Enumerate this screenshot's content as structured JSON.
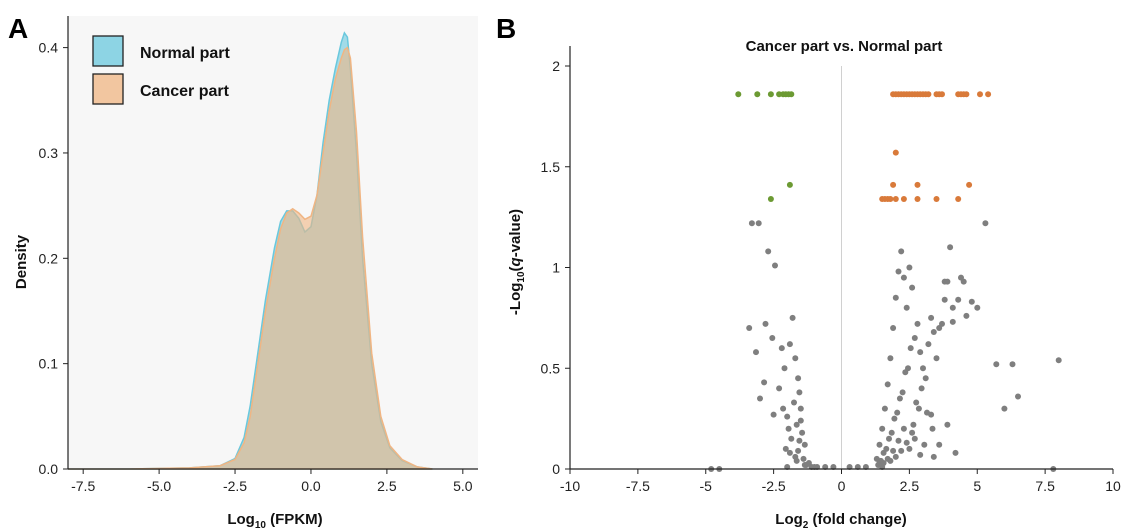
{
  "panels": {
    "a": "A",
    "b": "B"
  },
  "chart_data": [
    {
      "type": "area",
      "xlabel_main": "Log",
      "xlabel_sub": "10",
      "xlabel_rest": " (FPKM)",
      "ylabel": "Density",
      "xlim": [
        -8,
        5.5
      ],
      "ylim": [
        0,
        0.43
      ],
      "x_ticks": [
        "-7.5",
        "-5.0",
        "-2.5",
        "0.0",
        "2.5",
        "5.0"
      ],
      "x_tick_values": [
        -7.5,
        -5.0,
        -2.5,
        0.0,
        2.5,
        5.0
      ],
      "y_ticks": [
        "0.0",
        "0.1",
        "0.2",
        "0.3",
        "0.4"
      ],
      "y_tick_values": [
        0.0,
        0.1,
        0.2,
        0.3,
        0.4
      ],
      "legend": {
        "placement": "top-left"
      },
      "series": [
        {
          "name": "Normal part",
          "color": "#69c8dd",
          "x": [
            -8.0,
            -6.0,
            -4.0,
            -3.0,
            -2.5,
            -2.2,
            -2.0,
            -1.8,
            -1.5,
            -1.2,
            -1.0,
            -0.8,
            -0.6,
            -0.4,
            -0.2,
            0.0,
            0.2,
            0.4,
            0.6,
            0.8,
            1.0,
            1.1,
            1.2,
            1.3,
            1.5,
            1.7,
            2.0,
            2.3,
            2.6,
            3.0,
            3.5,
            4.0
          ],
          "y": [
            0.0,
            0.0,
            0.001,
            0.003,
            0.01,
            0.03,
            0.06,
            0.1,
            0.16,
            0.21,
            0.235,
            0.245,
            0.245,
            0.238,
            0.225,
            0.23,
            0.26,
            0.31,
            0.35,
            0.38,
            0.405,
            0.414,
            0.41,
            0.38,
            0.3,
            0.2,
            0.1,
            0.045,
            0.02,
            0.008,
            0.002,
            0.0
          ]
        },
        {
          "name": "Cancer part",
          "color": "#f0b583",
          "x": [
            -8.0,
            -6.0,
            -4.0,
            -3.0,
            -2.5,
            -2.2,
            -2.0,
            -1.8,
            -1.5,
            -1.2,
            -1.0,
            -0.8,
            -0.6,
            -0.4,
            -0.2,
            0.0,
            0.2,
            0.4,
            0.6,
            0.8,
            1.0,
            1.1,
            1.2,
            1.3,
            1.5,
            1.7,
            2.0,
            2.3,
            2.6,
            3.0,
            3.5,
            4.0
          ],
          "y": [
            0.0,
            0.0,
            0.001,
            0.003,
            0.009,
            0.025,
            0.05,
            0.09,
            0.15,
            0.2,
            0.228,
            0.243,
            0.247,
            0.243,
            0.237,
            0.24,
            0.26,
            0.3,
            0.34,
            0.37,
            0.39,
            0.398,
            0.4,
            0.39,
            0.32,
            0.22,
            0.11,
            0.05,
            0.022,
            0.009,
            0.002,
            0.0
          ]
        }
      ]
    },
    {
      "type": "scatter",
      "title": "Cancer part vs. Normal part",
      "xlabel_main": "Log",
      "xlabel_sub": "2",
      "xlabel_rest": " (fold change)",
      "ylabel_pre": "-Log",
      "ylabel_sub": "10",
      "ylabel_open": "(",
      "ylabel_ital": "q",
      "ylabel_rest": "-value)",
      "xlim": [
        -10,
        10
      ],
      "ylim": [
        0,
        2
      ],
      "x_ticks": [
        "-10",
        "-7.5",
        "-5",
        "-2.5",
        "0",
        "2.5",
        "5",
        "7.5",
        "10"
      ],
      "x_tick_values": [
        -10,
        -7.5,
        -5,
        -2.5,
        0,
        2.5,
        5,
        7.5,
        10
      ],
      "y_ticks": [
        "0",
        "0.5",
        "1",
        "1.5",
        "2"
      ],
      "y_tick_values": [
        0,
        0.5,
        1,
        1.5,
        2
      ],
      "grid": false,
      "series": [
        {
          "name": "",
          "color": "#6c9a33",
          "x": [
            -3.8,
            -3.1,
            -2.6,
            -2.3,
            -2.15,
            -2.05,
            -1.95,
            -1.85,
            -2.6,
            -1.9
          ],
          "y": [
            1.86,
            1.86,
            1.86,
            1.86,
            1.86,
            1.86,
            1.86,
            1.86,
            1.34,
            1.41
          ]
        },
        {
          "name": "",
          "color": "#d97a3a",
          "x": [
            1.9,
            2.0,
            2.1,
            2.2,
            2.3,
            2.4,
            2.5,
            2.6,
            2.7,
            2.8,
            2.9,
            3.0,
            3.1,
            3.2,
            3.5,
            3.6,
            3.7,
            4.3,
            4.4,
            4.5,
            4.6,
            5.1,
            5.4,
            1.5,
            1.6,
            1.7,
            1.8,
            2.0,
            2.3,
            2.8,
            3.5,
            1.9,
            2.8,
            4.7,
            2.0,
            4.3
          ],
          "y": [
            1.86,
            1.86,
            1.86,
            1.86,
            1.86,
            1.86,
            1.86,
            1.86,
            1.86,
            1.86,
            1.86,
            1.86,
            1.86,
            1.86,
            1.86,
            1.86,
            1.86,
            1.86,
            1.86,
            1.86,
            1.86,
            1.86,
            1.86,
            1.34,
            1.34,
            1.34,
            1.34,
            1.34,
            1.34,
            1.34,
            1.34,
            1.41,
            1.41,
            1.41,
            1.57,
            1.34
          ]
        },
        {
          "name": "",
          "color": "#7f7f7f",
          "x": [
            -3.3,
            -3.05,
            -2.7,
            -2.45,
            -2.8,
            -2.55,
            -3.4,
            -3.15,
            -2.85,
            -2.2,
            -2.1,
            -1.8,
            -1.9,
            -1.7,
            -1.6,
            -1.55,
            -1.5,
            -1.75,
            -2.0,
            -1.65,
            -1.45,
            -1.35,
            -1.85,
            -1.6,
            -2.3,
            -2.15,
            -1.95,
            -3.0,
            -2.5,
            -1.7,
            -1.4,
            -1.3,
            -1.55,
            -1.9,
            -1.2,
            -1.1,
            -1.5,
            -2.05,
            -1.65,
            -1.35,
            1.3,
            1.4,
            1.5,
            1.6,
            1.7,
            1.8,
            1.9,
            2.0,
            2.1,
            2.2,
            2.3,
            2.4,
            2.5,
            2.6,
            2.7,
            2.8,
            2.9,
            3.0,
            3.1,
            3.2,
            3.3,
            3.4,
            3.5,
            3.6,
            3.7,
            3.8,
            3.9,
            4.1,
            4.3,
            4.5,
            1.4,
            1.55,
            1.75,
            1.95,
            2.15,
            2.35,
            2.55,
            2.75,
            2.95,
            3.15,
            3.35,
            1.45,
            1.65,
            1.85,
            2.05,
            2.25,
            2.45,
            2.65,
            2.85,
            3.05,
            1.5,
            1.7,
            1.9,
            2.1,
            2.3,
            2.5,
            2.7,
            2.9,
            5.3,
            5.0,
            5.7,
            6.0,
            6.3,
            8.0,
            4.0,
            4.4,
            4.8,
            1.35,
            1.55,
            1.8,
            2.0,
            2.2,
            2.4,
            2.6,
            3.3,
            3.6,
            3.9,
            4.2,
            -0.6,
            -0.3,
            0.3,
            0.6,
            0.9,
            -0.9,
            -1.0,
            -4.5,
            -4.8,
            6.5,
            7.8,
            -2.0,
            4.6,
            3.4,
            3.8,
            4.1
          ],
          "y": [
            1.22,
            1.22,
            1.08,
            1.01,
            0.72,
            0.65,
            0.7,
            0.58,
            0.43,
            0.6,
            0.5,
            0.75,
            0.62,
            0.55,
            0.45,
            0.38,
            0.3,
            0.33,
            0.26,
            0.22,
            0.18,
            0.12,
            0.15,
            0.09,
            0.4,
            0.3,
            0.2,
            0.35,
            0.27,
            0.06,
            0.05,
            0.02,
            0.14,
            0.08,
            0.03,
            0.01,
            0.24,
            0.1,
            0.04,
            0.02,
            0.05,
            0.12,
            0.2,
            0.3,
            0.42,
            0.55,
            0.7,
            0.85,
            0.98,
            1.08,
            0.95,
            0.8,
            1.0,
            0.9,
            0.65,
            0.72,
            0.58,
            0.5,
            0.45,
            0.62,
            0.75,
            0.68,
            0.55,
            0.7,
            0.72,
            0.84,
            0.93,
            0.8,
            0.84,
            0.93,
            0.03,
            0.08,
            0.15,
            0.25,
            0.35,
            0.48,
            0.6,
            0.33,
            0.4,
            0.28,
            0.2,
            0.04,
            0.1,
            0.18,
            0.28,
            0.38,
            0.5,
            0.22,
            0.3,
            0.12,
            0.01,
            0.05,
            0.09,
            0.14,
            0.2,
            0.1,
            0.15,
            0.07,
            1.22,
            0.8,
            0.52,
            0.3,
            0.52,
            0.54,
            1.1,
            0.95,
            0.83,
            0.02,
            0.03,
            0.04,
            0.06,
            0.09,
            0.13,
            0.18,
            0.27,
            0.12,
            0.22,
            0.08,
            0.01,
            0.01,
            0.01,
            0.01,
            0.01,
            0.01,
            0.01,
            0.0,
            0.0,
            0.36,
            0.0,
            0.01,
            0.76,
            0.06,
            0.93,
            0.73
          ]
        }
      ],
      "reference_line_x": 0
    }
  ]
}
